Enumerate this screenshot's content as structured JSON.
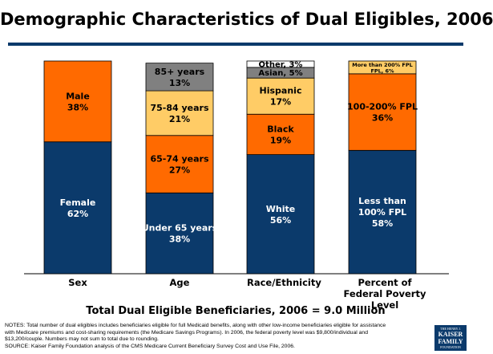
{
  "title": "Demographic Characteristics of Dual Eligibles, 2006",
  "subtitle": "Total Dual Eligible Beneficiaries, 2006 = 9.0 Million",
  "notes": [
    "NOTES: Total number of dual eligibles includes beneficiaries eligible for full Medicaid benefits, along with other low-income beneficiaries eligible for assistance",
    "with Medicare premiums and cost-sharing requirements (the Medicare Savings Programs). In 2006, the federal poverty level was $9,800/individual and",
    "$13,200/couple. Numbers may not sum to total due to rounding.",
    "SOURCE: Kaiser Family Foundation analysis of the CMS Medicare Current Beneficiary Survey Cost and Use File, 2006."
  ],
  "logo": {
    "line1": "THE HENRY J.",
    "line2a": "KAISER",
    "line2b": "FAMILY",
    "line3": "FOUNDATION"
  },
  "colors": {
    "navy": "#0b3a6b",
    "orange": "#ff6a00",
    "light_orange": "#ffcc66",
    "gray": "#808080",
    "white": "#ffffff"
  },
  "chart_data": {
    "type": "bar",
    "stacked": true,
    "percent_stacked": true,
    "categories": [
      "Sex",
      "Age",
      "Race/Ethnicity",
      "Percent of\nFederal Poverty Level"
    ],
    "ylim": [
      0,
      100
    ],
    "grid": false,
    "bars": [
      {
        "category": "Sex",
        "segments": [
          {
            "label": "Female",
            "value": 62,
            "display": "62%",
            "color": "#0b3a6b",
            "text_color": "#ffffff"
          },
          {
            "label": "Male",
            "value": 38,
            "display": "38%",
            "color": "#ff6a00",
            "text_color": "#000000"
          }
        ]
      },
      {
        "category": "Age",
        "segments": [
          {
            "label": "Under 65 years",
            "value": 38,
            "display": "38%",
            "color": "#0b3a6b",
            "text_color": "#ffffff"
          },
          {
            "label": "65-74 years",
            "value": 27,
            "display": "27%",
            "color": "#ff6a00",
            "text_color": "#000000"
          },
          {
            "label": "75-84 years",
            "value": 21,
            "display": "21%",
            "color": "#ffcc66",
            "text_color": "#000000"
          },
          {
            "label": "85+ years",
            "value": 13,
            "display": "13%",
            "color": "#808080",
            "text_color": "#000000"
          }
        ]
      },
      {
        "category": "Race/Ethnicity",
        "segments": [
          {
            "label": "White",
            "value": 56,
            "display": "56%",
            "color": "#0b3a6b",
            "text_color": "#ffffff"
          },
          {
            "label": "Black",
            "value": 19,
            "display": "19%",
            "color": "#ff6a00",
            "text_color": "#000000"
          },
          {
            "label": "Hispanic",
            "value": 17,
            "display": "17%",
            "color": "#ffcc66",
            "text_color": "#000000"
          },
          {
            "label": "Asian",
            "value": 5,
            "display": "5%",
            "color": "#808080",
            "text_color": "#000000",
            "inline": true
          },
          {
            "label": "Other",
            "value": 3,
            "display": "3%",
            "color": "#ffffff",
            "text_color": "#000000",
            "inline": true
          }
        ]
      },
      {
        "category": "Percent of Federal Poverty Level",
        "segments": [
          {
            "label": "Less than 100% FPL",
            "value": 58,
            "display": "58%",
            "color": "#0b3a6b",
            "text_color": "#ffffff"
          },
          {
            "label": "100-200% FPL",
            "value": 36,
            "display": "36%",
            "color": "#ff6a00",
            "text_color": "#000000"
          },
          {
            "label": "More than 200% FPL",
            "value": 6,
            "display": "6%",
            "color": "#ffcc66",
            "text_color": "#000000",
            "inline": true
          }
        ]
      }
    ]
  }
}
